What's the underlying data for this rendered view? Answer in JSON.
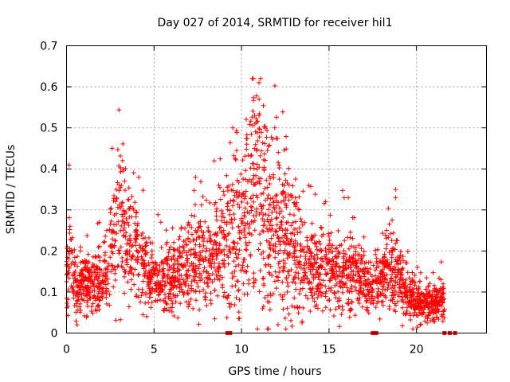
{
  "chart_data": {
    "type": "scatter",
    "title": "Day 027 of 2014, SRMTID for receiver hil1",
    "xlabel": "GPS time / hours",
    "ylabel": "SRMTID / TECUs",
    "xlim": [
      0,
      24
    ],
    "ylim": [
      0,
      0.7
    ],
    "xticks": [
      0,
      5,
      10,
      15,
      20
    ],
    "yticks": [
      0,
      0.1,
      0.2,
      0.3,
      0.4,
      0.5,
      0.6,
      0.7
    ],
    "grid": true,
    "marker": "+",
    "colors": {
      "series": "#ff0000",
      "grid": "#a0a0a0",
      "axis": "#000000"
    },
    "series": [
      {
        "name": "SRMTID",
        "trend": [
          [
            0.0,
            0.13
          ],
          [
            0.25,
            0.2
          ],
          [
            0.5,
            0.11
          ],
          [
            1.0,
            0.12
          ],
          [
            1.5,
            0.11
          ],
          [
            2.0,
            0.13
          ],
          [
            2.5,
            0.17
          ],
          [
            2.8,
            0.26
          ],
          [
            3.2,
            0.3
          ],
          [
            3.5,
            0.2
          ],
          [
            4.0,
            0.2
          ],
          [
            4.5,
            0.17
          ],
          [
            5.0,
            0.13
          ],
          [
            5.5,
            0.13
          ],
          [
            6.0,
            0.13
          ],
          [
            6.5,
            0.15
          ],
          [
            7.0,
            0.17
          ],
          [
            7.5,
            0.18
          ],
          [
            8.0,
            0.18
          ],
          [
            8.5,
            0.19
          ],
          [
            9.0,
            0.2
          ],
          [
            9.5,
            0.24
          ],
          [
            10.0,
            0.26
          ],
          [
            10.5,
            0.3
          ],
          [
            10.9,
            0.34
          ],
          [
            11.3,
            0.3
          ],
          [
            11.6,
            0.27
          ],
          [
            12.0,
            0.25
          ],
          [
            12.5,
            0.24
          ],
          [
            13.0,
            0.2
          ],
          [
            13.5,
            0.17
          ],
          [
            14.0,
            0.16
          ],
          [
            14.5,
            0.16
          ],
          [
            15.0,
            0.16
          ],
          [
            15.5,
            0.14
          ],
          [
            16.0,
            0.13
          ],
          [
            16.5,
            0.15
          ],
          [
            17.0,
            0.13
          ],
          [
            17.5,
            0.11
          ],
          [
            18.0,
            0.14
          ],
          [
            18.5,
            0.16
          ],
          [
            19.0,
            0.13
          ],
          [
            19.5,
            0.09
          ],
          [
            20.0,
            0.08
          ],
          [
            20.5,
            0.07
          ],
          [
            21.0,
            0.07
          ],
          [
            21.5,
            0.08
          ]
        ],
        "spikes": [
          [
            0.2,
            0.26
          ],
          [
            3.2,
            0.42
          ],
          [
            9.5,
            0.5
          ],
          [
            10.3,
            0.46
          ],
          [
            10.8,
            0.49
          ],
          [
            11.0,
            0.61
          ],
          [
            11.0,
            0.57
          ],
          [
            11.0,
            0.53
          ],
          [
            11.9,
            0.5
          ],
          [
            12.1,
            0.44
          ],
          [
            14.8,
            0.32
          ],
          [
            16.1,
            0.33
          ],
          [
            18.8,
            0.35
          ],
          [
            18.8,
            0.33
          ],
          [
            20.8,
            0.03
          ],
          [
            21.4,
            0.13
          ],
          [
            0.6,
            0.02
          ],
          [
            8.7,
            0.36
          ]
        ],
        "edge_points": [
          9.2,
          9.35,
          17.5,
          17.7,
          21.6,
          21.9,
          22.2
        ],
        "time_range": [
          0.0,
          21.6
        ],
        "approx_count": 2700
      }
    ]
  }
}
